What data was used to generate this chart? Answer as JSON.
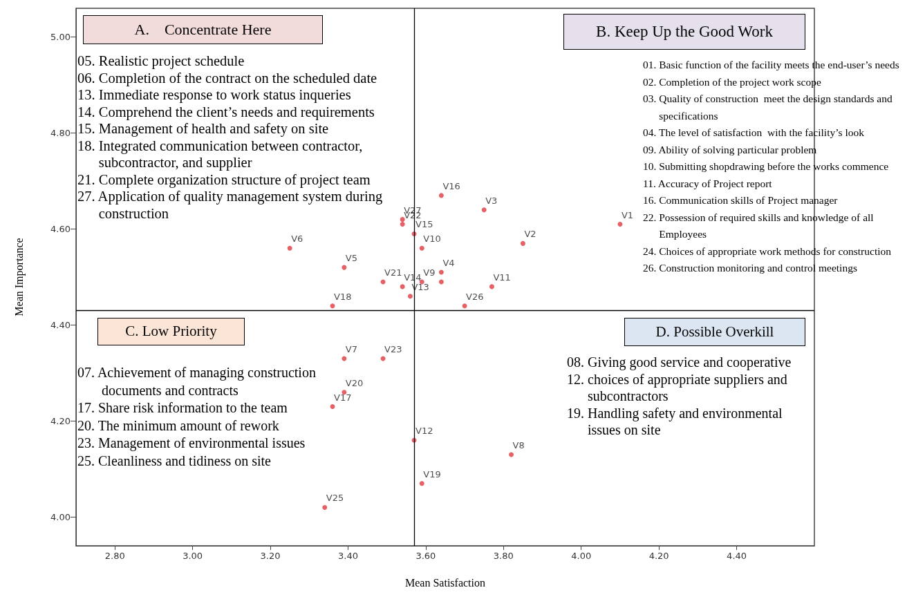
{
  "chart_data": {
    "type": "scatter",
    "xlabel": "Mean Satisfaction",
    "ylabel": "Mean Importance",
    "x": [
      4.1,
      3.85,
      3.75,
      3.64,
      3.39,
      3.25,
      3.39,
      3.82,
      3.59,
      3.59,
      3.77,
      3.57,
      3.56,
      3.54,
      3.57,
      3.64,
      3.36,
      3.36,
      3.59,
      3.39,
      3.49,
      3.54,
      3.49,
      3.64,
      3.34,
      3.7,
      3.54
    ],
    "values": [
      4.61,
      4.57,
      4.64,
      4.51,
      4.52,
      4.56,
      4.33,
      4.13,
      4.49,
      4.56,
      4.48,
      4.16,
      4.46,
      4.48,
      4.59,
      4.67,
      4.23,
      4.44,
      4.07,
      4.26,
      4.49,
      4.61,
      4.33,
      4.49,
      4.02,
      4.44,
      4.62
    ],
    "color": "#e0393e",
    "marker": "circle",
    "xlim": [
      2.7,
      4.6
    ],
    "ylim": [
      3.94,
      5.06
    ],
    "xticks": [
      {
        "value": 2.8,
        "label": "2.80"
      },
      {
        "value": 3.0,
        "label": "3.00"
      },
      {
        "value": 3.2,
        "label": "3.20"
      },
      {
        "value": 3.4,
        "label": "3.40"
      },
      {
        "value": 3.6,
        "label": "3.60"
      },
      {
        "value": 3.8,
        "label": "3.80"
      },
      {
        "value": 4.0,
        "label": "4.00"
      },
      {
        "value": 4.2,
        "label": "4.20"
      },
      {
        "value": 4.4,
        "label": "4.40"
      }
    ],
    "yticks": [
      {
        "value": 4.0,
        "label": "4.00"
      },
      {
        "value": 4.2,
        "label": "4.20"
      },
      {
        "value": 4.4,
        "label": "4.40"
      },
      {
        "value": 4.6,
        "label": "4.60"
      },
      {
        "value": 4.8,
        "label": "4.80"
      },
      {
        "value": 5.0,
        "label": "5.00"
      }
    ],
    "ref_lines": [
      {
        "axis": "x",
        "value": 3.57,
        "color": "#000000"
      },
      {
        "axis": "y",
        "value": 4.43,
        "color": "#000000"
      }
    ],
    "annotations": [
      "A.    Concentrate Here",
      "05. Realistic project schedule\n06. Completion of the contract on the scheduled date\n13. Immediate response to work status inqueries\n14. Comprehend the client’s needs and requirements\n15. Management of health and safety on site\n18. Integrated communication between contractor,\n      subcontractor, and supplier\n21. Complete organization structure of project team\n27. Application of quality management system during\n      construction",
      "B. Keep Up the Good Work",
      "01. Basic function of the facility meets the end-user’s needs\n02. Completion of the project work scope\n03. Quality of construction  meet the design standards and\n      specifications\n04. The level of satisfaction  with the facility’s look\n09. Ability of solving particular problem\n10. Submitting shopdrawing before the works commence\n11. Accuracy of Project report\n16. Communication skills of Project manager\n22. Possession of required skills and knowledge of all\n      Employees\n24. Choices of appropriate work methods for construction\n26. Construction monitoring and control meetings",
      "C. Low Priority",
      "07. Achievement of managing construction\n       documents and contracts\n17. Share risk information to the team\n20. The minimum amount of rework\n23. Management of environmental issues\n25. Cleanliness and tidiness on site",
      "D. Possible Overkill",
      "08. Giving good service and cooperative\n12. choices of appropriate suppliers and\n      subcontractors\n19. Handling safety and environmental\n      issues on site",
      {
        "text": "V1",
        "x": 4.1,
        "y": 4.61
      },
      {
        "text": "V2",
        "x": 3.85,
        "y": 4.57
      },
      {
        "text": "V3",
        "x": 3.75,
        "y": 4.64
      },
      {
        "text": "V4",
        "x": 3.64,
        "y": 4.51
      },
      {
        "text": "V5",
        "x": 3.39,
        "y": 4.52
      },
      {
        "text": "V6",
        "x": 3.25,
        "y": 4.56
      },
      {
        "text": "V7",
        "x": 3.39,
        "y": 4.33
      },
      {
        "text": "V8",
        "x": 3.82,
        "y": 4.13
      },
      {
        "text": "V9",
        "x": 3.59,
        "y": 4.49
      },
      {
        "text": "V10",
        "x": 3.59,
        "y": 4.56
      },
      {
        "text": "V11",
        "x": 3.77,
        "y": 4.48
      },
      {
        "text": "V12",
        "x": 3.57,
        "y": 4.16
      },
      {
        "text": "V13",
        "x": 3.56,
        "y": 4.46
      },
      {
        "text": "V14",
        "x": 3.54,
        "y": 4.48
      },
      {
        "text": "V15",
        "x": 3.57,
        "y": 4.59
      },
      {
        "text": "V16",
        "x": 3.64,
        "y": 4.67
      },
      {
        "text": "V17",
        "x": 3.36,
        "y": 4.23
      },
      {
        "text": "V18",
        "x": 3.36,
        "y": 4.44
      },
      {
        "text": "V19",
        "x": 3.59,
        "y": 4.07
      },
      {
        "text": "V20",
        "x": 3.39,
        "y": 4.26
      },
      {
        "text": "V21",
        "x": 3.49,
        "y": 4.49
      },
      {
        "text": "V22",
        "x": 3.54,
        "y": 4.61
      },
      {
        "text": "V23",
        "x": 3.49,
        "y": 4.33
      },
      {
        "text": "V25",
        "x": 3.34,
        "y": 4.02
      },
      {
        "text": "V26",
        "x": 3.7,
        "y": 4.44
      },
      {
        "text": "V27",
        "x": 3.54,
        "y": 4.62
      }
    ]
  }
}
